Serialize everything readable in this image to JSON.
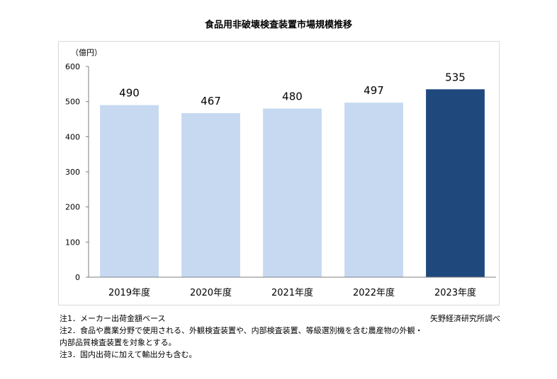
{
  "chart_data": {
    "type": "bar",
    "title": "食品用非破壊検査装置市場規模推移",
    "unit_label": "（億円）",
    "categories": [
      "2019年度",
      "2020年度",
      "2021年度",
      "2022年度",
      "2023年度"
    ],
    "values": [
      490,
      467,
      480,
      497,
      535
    ],
    "data_labels": [
      "490",
      "467",
      "480",
      "497",
      "535"
    ],
    "ylim": [
      0,
      600
    ],
    "yticks": [
      0,
      100,
      200,
      300,
      400,
      500,
      600
    ],
    "grid": false,
    "colors": {
      "bar": "#c6d9f1",
      "highlight": "#1f497d",
      "axis": "#7f7f7f"
    },
    "highlight_index": 4
  },
  "notes": [
    "注1．メーカー出荷金額ベース",
    "注2．食品や農業分野で使用される、外観検査装置や、内部検査装置、等級選別機を含む農産物の外観・",
    "内部品質検査装置を対象とする。",
    "注3．国内出荷に加えて輸出分も含む。"
  ],
  "source": "矢野経済研究所調べ"
}
